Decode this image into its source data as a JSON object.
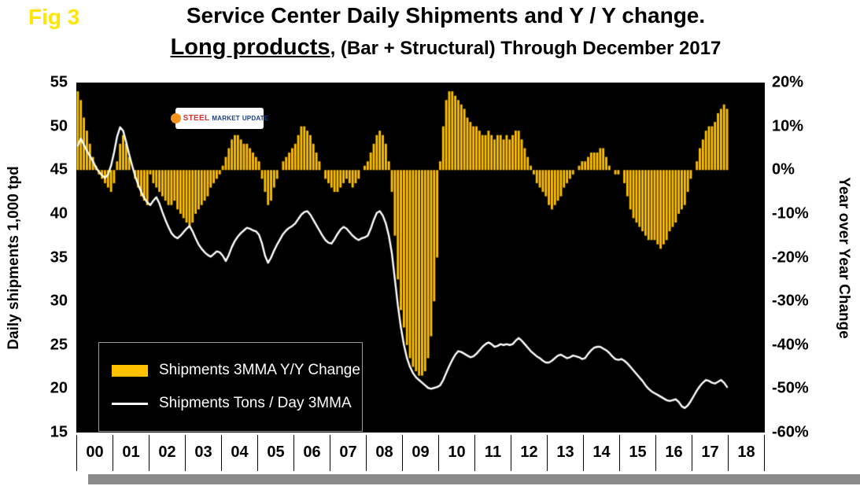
{
  "header": {
    "fig_label": "Fig 3",
    "title_line1": "Service Center Daily Shipments and Y / Y change.",
    "title_line2_emphasis": "Long products",
    "title_line2_rest": ", (Bar + Structural) Through December 2017"
  },
  "logo": {
    "word1": "STEEL",
    "word2": "MARKET",
    "word3": "UPDATE"
  },
  "legend": {
    "items": [
      {
        "swatch": "bar",
        "label": "Shipments 3MMA Y/Y Change"
      },
      {
        "swatch": "line",
        "label": "Shipments Tons / Day 3MMA"
      }
    ]
  },
  "colors": {
    "bar": "#FFC000",
    "line": "#FFFFFF",
    "plot_bg": "#000000",
    "fig_label": "#FFE600"
  },
  "chart_data": {
    "type": "combo",
    "frequency": "monthly",
    "x_start": "2000-01",
    "x_end": "2017-12",
    "x_axis_years": [
      "00",
      "01",
      "02",
      "03",
      "04",
      "05",
      "06",
      "07",
      "08",
      "09",
      "10",
      "11",
      "12",
      "13",
      "14",
      "15",
      "16",
      "17",
      "18"
    ],
    "plot_background": "#000000",
    "grid": false,
    "legend_position": "inside lower-left",
    "left_axis": {
      "label": "Daily shipments 1,000 tpd",
      "min": 15,
      "max": 55,
      "ticks": [
        55,
        50,
        45,
        40,
        35,
        30,
        25,
        20,
        15
      ]
    },
    "right_axis": {
      "label": "Year over Year Change",
      "min": -60,
      "max": 20,
      "tick_labels": [
        "20%",
        "10%",
        "0%",
        "-10%",
        "-20%",
        "-30%",
        "-40%",
        "-50%",
        "-60%"
      ],
      "ticks_pct": [
        20,
        10,
        0,
        -10,
        -20,
        -30,
        -40,
        -50,
        -60
      ]
    },
    "series": [
      {
        "name": "Shipments 3MMA Y/Y Change",
        "type": "bar",
        "axis": "right",
        "color": "#FFC000",
        "unit": "%",
        "values_by_year": [
          [
            18,
            16,
            12,
            9,
            6,
            3,
            1,
            -1,
            -2,
            -3,
            -4,
            -5
          ],
          [
            -3,
            2,
            6,
            8,
            6,
            3,
            0,
            -2,
            -4,
            -6,
            -7,
            -8
          ],
          [
            -1,
            -3,
            -4,
            -5,
            -6,
            -7,
            -8,
            -8,
            -7,
            -9,
            -10,
            -11
          ],
          [
            -12,
            -13,
            -12,
            -10,
            -9,
            -8,
            -7,
            -6,
            -4,
            -3,
            -2,
            -1
          ],
          [
            1,
            3,
            5,
            7,
            8,
            8,
            7,
            6,
            6,
            5,
            4,
            3
          ],
          [
            2,
            -2,
            -5,
            -8,
            -7,
            -4,
            -2,
            0,
            2,
            3,
            4,
            5
          ],
          [
            6,
            8,
            10,
            10,
            9,
            8,
            6,
            4,
            2,
            0,
            -2,
            -3
          ],
          [
            -4,
            -5,
            -5,
            -4,
            -3,
            -2,
            -3,
            -4,
            -3,
            -2,
            0,
            1
          ],
          [
            2,
            4,
            6,
            8,
            9,
            8,
            6,
            2,
            -5,
            -15,
            -25,
            -32
          ],
          [
            -36,
            -40,
            -43,
            -45,
            -46,
            -47,
            -47,
            -46,
            -43,
            -38,
            -30,
            -20
          ],
          [
            2,
            10,
            16,
            18,
            18,
            17,
            16,
            15,
            14,
            12,
            11,
            10
          ],
          [
            10,
            9,
            8,
            8,
            9,
            8,
            7,
            8,
            8,
            7,
            8,
            7
          ],
          [
            8,
            9,
            9,
            7,
            5,
            3,
            1,
            -1,
            -3,
            -4,
            -5,
            -6
          ],
          [
            -8,
            -9,
            -8,
            -7,
            -6,
            -4,
            -3,
            -2,
            -1,
            0,
            1,
            2
          ],
          [
            2,
            3,
            4,
            4,
            4,
            5,
            5,
            3,
            1,
            0,
            -1,
            -1
          ],
          [
            0,
            -3,
            -6,
            -9,
            -11,
            -12,
            -13,
            -14,
            -15,
            -16,
            -16,
            -16
          ],
          [
            -17,
            -18,
            -17,
            -16,
            -14,
            -13,
            -12,
            -10,
            -9,
            -8,
            -5,
            -2
          ],
          [
            0,
            2,
            5,
            7,
            9,
            10,
            10,
            11,
            13,
            14,
            15,
            14
          ]
        ]
      },
      {
        "name": "Shipments Tons / Day 3MMA",
        "type": "line",
        "axis": "left",
        "color": "#FFFFFF",
        "unit": "1,000 tpd",
        "values_by_year": [
          [
            47.8,
            48.6,
            47.9,
            47.2,
            46.6,
            46.0,
            45.3,
            44.8,
            44.4,
            44.1,
            44.5,
            45.5
          ],
          [
            47.0,
            48.8,
            49.9,
            49.5,
            48.2,
            46.8,
            45.5,
            44.3,
            43.3,
            42.5,
            41.8,
            41.3
          ],
          [
            41.0,
            41.5,
            41.9,
            41.2,
            40.2,
            39.3,
            38.5,
            37.8,
            37.4,
            37.2,
            37.5,
            37.9
          ],
          [
            38.3,
            38.6,
            38.0,
            37.2,
            36.5,
            36.0,
            35.6,
            35.3,
            35.1,
            35.4,
            35.7,
            35.6
          ],
          [
            35.2,
            34.6,
            35.3,
            36.2,
            36.9,
            37.4,
            37.8,
            38.1,
            38.4,
            38.3,
            38.1,
            38.0
          ],
          [
            37.6,
            36.6,
            35.2,
            34.4,
            35.0,
            35.8,
            36.5,
            37.1,
            37.7,
            38.1,
            38.4,
            38.6
          ],
          [
            38.9,
            39.4,
            39.9,
            40.2,
            40.3,
            39.9,
            39.3,
            38.7,
            38.1,
            37.5,
            37.0,
            36.7
          ],
          [
            36.6,
            37.1,
            37.7,
            38.2,
            38.5,
            38.3,
            37.9,
            37.5,
            37.2,
            37.0,
            37.2,
            37.3
          ],
          [
            37.5,
            38.3,
            39.3,
            40.1,
            40.3,
            39.8,
            38.9,
            37.5,
            35.5,
            32.5,
            29.5,
            27.0
          ],
          [
            25.0,
            23.5,
            22.5,
            21.8,
            21.3,
            21.0,
            20.7,
            20.4,
            20.1,
            20.0,
            20.1,
            20.2
          ],
          [
            20.4,
            21.0,
            21.8,
            22.6,
            23.3,
            23.9,
            24.3,
            24.2,
            24.0,
            23.8,
            23.6,
            23.7
          ],
          [
            24.0,
            24.4,
            24.8,
            25.1,
            25.3,
            25.1,
            24.8,
            24.9,
            25.1,
            25.0,
            25.1,
            25.0
          ],
          [
            25.1,
            25.5,
            25.8,
            25.5,
            25.1,
            24.7,
            24.3,
            24.0,
            23.7,
            23.5,
            23.2,
            23.0
          ],
          [
            23.0,
            23.2,
            23.5,
            23.8,
            23.9,
            23.7,
            23.5,
            23.6,
            23.8,
            23.7,
            23.6,
            23.4
          ],
          [
            23.5,
            24.0,
            24.4,
            24.7,
            24.8,
            24.8,
            24.6,
            24.4,
            24.1,
            23.7,
            23.4,
            23.3
          ],
          [
            23.4,
            23.2,
            22.9,
            22.5,
            22.1,
            21.7,
            21.3,
            20.9,
            20.4,
            20.0,
            19.7,
            19.5
          ],
          [
            19.3,
            19.1,
            18.9,
            18.7,
            18.6,
            18.7,
            18.8,
            18.5,
            18.0,
            17.8,
            18.1,
            18.6
          ],
          [
            19.2,
            19.8,
            20.3,
            20.7,
            21.0,
            20.9,
            20.7,
            20.6,
            20.8,
            21.0,
            20.7,
            20.2
          ]
        ]
      }
    ]
  }
}
